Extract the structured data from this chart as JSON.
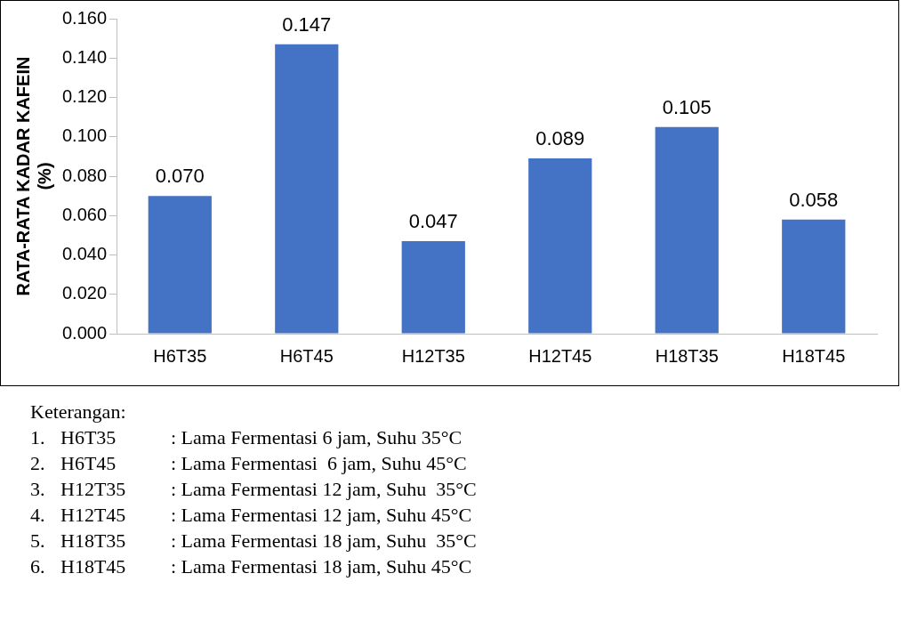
{
  "chart_data": {
    "type": "bar",
    "ylabel": "RATA-RATA KADAR KAFEIN\n(%)",
    "categories": [
      "H6T35",
      "H6T45",
      "H12T35",
      "H12T45",
      "H18T35",
      "H18T45"
    ],
    "values": [
      0.07,
      0.147,
      0.047,
      0.089,
      0.105,
      0.058
    ],
    "value_labels": [
      "0.070",
      "0.147",
      "0.047",
      "0.089",
      "0.105",
      "0.058"
    ],
    "color": "#4472c4",
    "ylim": [
      0,
      0.16
    ],
    "yticks": [
      {
        "value": 0,
        "label": "0.000"
      },
      {
        "value": 0.02,
        "label": "0.020"
      },
      {
        "value": 0.04,
        "label": "0.040"
      },
      {
        "value": 0.06,
        "label": "0.060"
      },
      {
        "value": 0.08,
        "label": "0.080"
      },
      {
        "value": 0.1,
        "label": "0.100"
      },
      {
        "value": 0.12,
        "label": "0.120"
      },
      {
        "value": 0.14,
        "label": "0.140"
      },
      {
        "value": 0.16,
        "label": "0.160"
      }
    ],
    "grid": false,
    "legend": false,
    "annotations": [
      "Keterangan:",
      "1.\tH6T35\t: Lama Fermentasi 6 jam, Suhu 35°C",
      "2.\tH6T45\t: Lama Fermentasi  6 jam, Suhu 45°C",
      "3.\tH12T35\t: Lama Fermentasi 12 jam, Suhu  35°C",
      "4.\tH12T45\t: Lama Fermentasi 12 jam, Suhu 45°C",
      "5.\tH18T35\t: Lama Fermentasi 18 jam, Suhu  35°C",
      "6.\tH18T45\t: Lama Fermentasi 18 jam, Suhu 45°C"
    ]
  }
}
